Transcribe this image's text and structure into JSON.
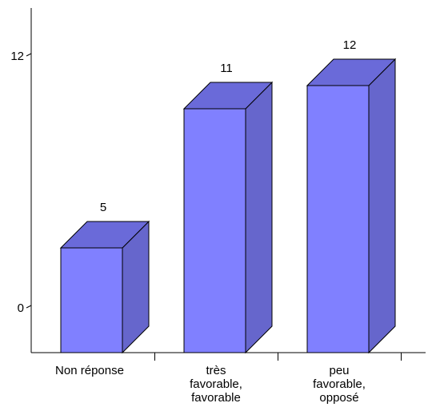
{
  "chart_data": {
    "type": "bar",
    "three_d": true,
    "categories": [
      [
        "Non réponse"
      ],
      [
        "très",
        "favorable,",
        "favorable"
      ],
      [
        "peu",
        "favorable,",
        "opposé"
      ]
    ],
    "values": [
      5,
      11,
      12
    ],
    "data_labels": [
      "5",
      "11",
      "12"
    ],
    "y_tick_labels": [
      "0",
      "12"
    ],
    "y_ticks": [
      0,
      12
    ],
    "ylim": [
      0,
      12
    ],
    "grid": false,
    "legend": "none",
    "colors": {
      "bar_front": "#8080FF",
      "bar_top": "#6A6AD9",
      "bar_side": "#6666CC",
      "outline": "#000000",
      "axis": "#000000"
    }
  }
}
